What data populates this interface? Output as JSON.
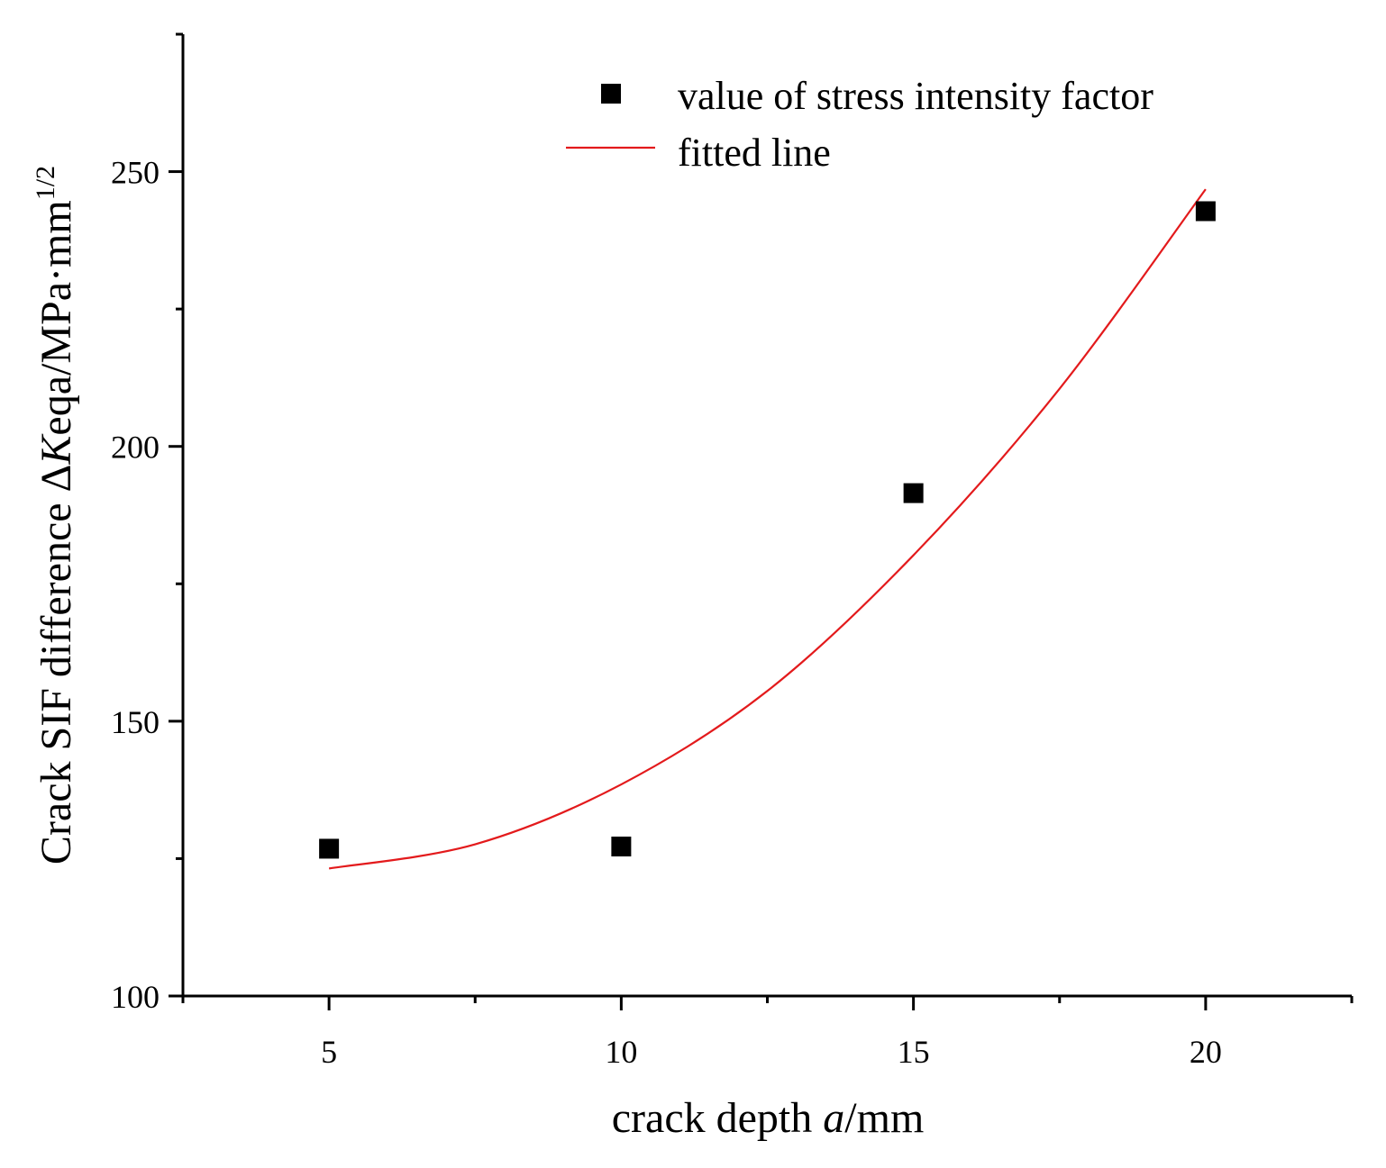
{
  "chart_data": {
    "type": "scatter",
    "title": "",
    "xlabel": {
      "prefix": "crack depth ",
      "italic": "a",
      "suffix": "/mm"
    },
    "ylabel": {
      "prefix": "Crack SIF difference Δ",
      "italic": "K",
      "suffix": "eqa/MPa·mm",
      "superscript": "1/2"
    },
    "xlim": [
      2.5,
      22.5
    ],
    "ylim": [
      100,
      275
    ],
    "xticks": [
      5,
      10,
      15,
      20
    ],
    "xtick_labels": [
      "5",
      "10",
      "15",
      "20"
    ],
    "yticks": [
      100,
      150,
      200,
      250
    ],
    "ytick_labels": [
      "100",
      "150",
      "200",
      "250"
    ],
    "series": [
      {
        "name": "value of stress intensity factor",
        "kind": "scatter",
        "marker": "square",
        "color": "#000000",
        "x": [
          5,
          10,
          15,
          20
        ],
        "y": [
          126.8,
          127.2,
          191.5,
          242.8
        ]
      },
      {
        "name": "fitted line",
        "kind": "line",
        "color": "#e31a1c",
        "x": [
          5,
          7.5,
          10,
          12.5,
          15,
          17.5,
          20
        ],
        "y": [
          123.2,
          127.6,
          138.5,
          155.5,
          180.2,
          210.5,
          246.8
        ]
      }
    ],
    "grid": false,
    "legend_position": "top-right"
  }
}
